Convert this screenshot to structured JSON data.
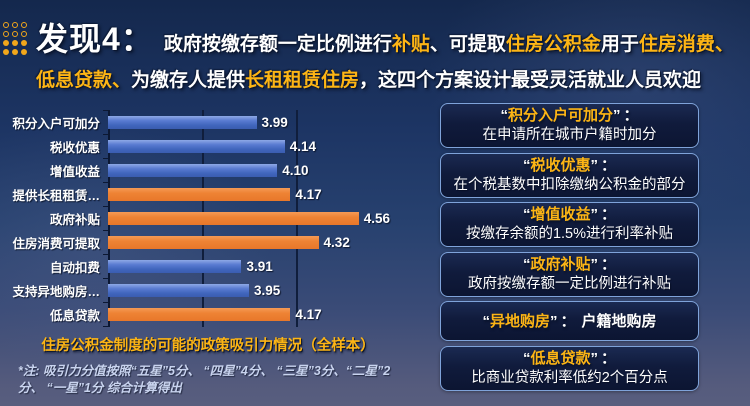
{
  "colors": {
    "accent_gold": "#fdb515",
    "bar_blue": "#4472c4",
    "bar_orange": "#ed7d31",
    "box_border": "#7fa3da",
    "background_top": "#14284d",
    "background_bottom": "#585e7e"
  },
  "header": {
    "finding_label": "发现4：",
    "line1": [
      {
        "text": "政府按缴存额一定比例进行",
        "color": "white"
      },
      {
        "text": "补贴",
        "color": "gold"
      },
      {
        "text": "、可提取",
        "color": "white"
      },
      {
        "text": "住房公积金",
        "color": "gold"
      },
      {
        "text": "用于",
        "color": "white"
      },
      {
        "text": "住房消费、",
        "color": "gold"
      }
    ],
    "line2": [
      {
        "text": "低息贷款、",
        "color": "gold"
      },
      {
        "text": "为缴存人提供",
        "color": "white"
      },
      {
        "text": "长租租赁住房",
        "color": "gold"
      },
      {
        "text": "，这四个方案设计最受灵活就业人员欢迎",
        "color": "white"
      }
    ]
  },
  "chart_data": {
    "type": "bar",
    "orientation": "horizontal",
    "title": "住房公积金制度的可能的政策吸引力情况（全样本）",
    "note": "*注: 吸引力分值按照“五星”5分、 “四星”4分、 “三星”3分、“二星”2分、 “一星”1分 综合计算得出",
    "categories": [
      "积分入户可加分",
      "税收优惠",
      "增值收益",
      "提供长租租赁…",
      "政府补贴",
      "住房消费可提取",
      "自动扣费",
      "支持异地购房…",
      "低息贷款"
    ],
    "values": [
      3.99,
      4.14,
      4.1,
      4.17,
      4.56,
      4.32,
      3.91,
      3.95,
      4.17
    ],
    "value_labels": [
      "3.99",
      "4.14",
      "4.10",
      "4.17",
      "4.56",
      "4.32",
      "3.91",
      "3.95",
      "4.17"
    ],
    "series_color": [
      "blue",
      "blue",
      "blue",
      "orange",
      "orange",
      "orange",
      "blue",
      "blue",
      "orange"
    ],
    "xlim": [
      3.2,
      4.7
    ],
    "gridlines": [
      3.7,
      4.2
    ],
    "grid": true,
    "legend": false,
    "xlabel": "",
    "ylabel": ""
  },
  "definitions": [
    {
      "term": "积分入户可加分",
      "desc": "在申请所在城市户籍时加分"
    },
    {
      "term": "税收优惠",
      "desc": "在个税基数中扣除缴纳公积金的部分"
    },
    {
      "term": "增值收益",
      "desc": "按缴存余额的1.5%进行利率补贴"
    },
    {
      "term": "政府补贴",
      "desc": "政府按缴存额一定比例进行补贴"
    },
    {
      "term": "异地购房",
      "desc": "户籍地购房"
    },
    {
      "term": "低息贷款",
      "desc": "比商业贷款利率低约2个百分点"
    }
  ]
}
